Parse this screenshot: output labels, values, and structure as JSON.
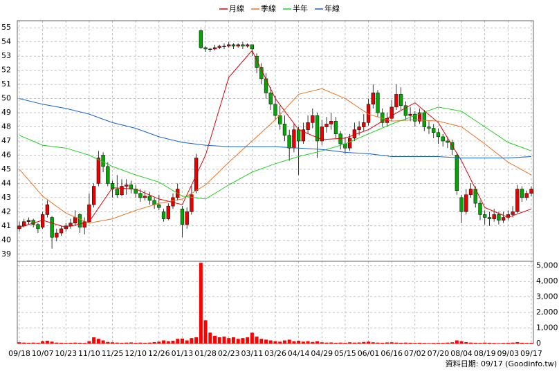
{
  "chart_data": {
    "type": "candlestick",
    "categories": [
      "09/18",
      null,
      null,
      null,
      null,
      "10/07",
      null,
      null,
      null,
      null,
      "10/23",
      null,
      null,
      null,
      null,
      "11/10",
      null,
      null,
      null,
      null,
      "11/25",
      null,
      null,
      null,
      null,
      "12/10",
      null,
      null,
      null,
      null,
      "12/26",
      null,
      null,
      null,
      null,
      "01/13",
      null,
      null,
      null,
      null,
      "01/28",
      null,
      null,
      null,
      null,
      "02/23",
      null,
      null,
      null,
      null,
      "03/11",
      null,
      null,
      null,
      null,
      "03/26",
      null,
      null,
      null,
      null,
      "04/14",
      null,
      null,
      null,
      null,
      "04/29",
      null,
      null,
      null,
      null,
      "05/15",
      null,
      null,
      null,
      null,
      "06/01",
      null,
      null,
      null,
      null,
      "06/16",
      null,
      null,
      null,
      null,
      "07/02",
      null,
      null,
      null,
      null,
      "07/20",
      null,
      null,
      null,
      null,
      "08/04",
      null,
      null,
      null,
      null,
      "08/19",
      null,
      null,
      null,
      null,
      "09/03",
      null,
      null,
      null,
      null,
      "09/17"
    ],
    "ohlc": [
      [
        40.8,
        41.3,
        40.6,
        41.0
      ],
      [
        41.0,
        41.5,
        40.9,
        41.3
      ],
      [
        41.3,
        41.6,
        41.1,
        41.4
      ],
      [
        41.4,
        41.5,
        40.9,
        41.1
      ],
      [
        41.1,
        41.2,
        40.5,
        40.8
      ],
      [
        40.9,
        42.0,
        40.8,
        41.8
      ],
      [
        41.8,
        42.8,
        41.6,
        42.5
      ],
      [
        41.6,
        41.7,
        39.4,
        40.2
      ],
      [
        40.2,
        40.8,
        39.9,
        40.5
      ],
      [
        40.5,
        41.0,
        40.3,
        40.8
      ],
      [
        40.8,
        41.2,
        40.6,
        41.0
      ],
      [
        41.0,
        41.5,
        40.8,
        41.2
      ],
      [
        41.2,
        42.1,
        41.0,
        41.6
      ],
      [
        41.8,
        41.9,
        40.5,
        40.9
      ],
      [
        40.9,
        41.6,
        40.4,
        41.3
      ],
      [
        41.3,
        43.3,
        41.2,
        42.5
      ],
      [
        42.5,
        44.0,
        42.3,
        43.8
      ],
      [
        44.0,
        46.3,
        43.8,
        45.8
      ],
      [
        46.0,
        46.2,
        44.8,
        45.2
      ],
      [
        45.2,
        45.5,
        43.8,
        44.0
      ],
      [
        44.0,
        44.2,
        43.0,
        43.6
      ],
      [
        43.6,
        44.6,
        43.0,
        43.2
      ],
      [
        43.2,
        44.3,
        43.1,
        43.8
      ],
      [
        43.8,
        44.3,
        43.2,
        43.9
      ],
      [
        43.9,
        44.2,
        43.3,
        43.6
      ],
      [
        43.6,
        43.9,
        43.0,
        43.3
      ],
      [
        43.3,
        43.6,
        42.7,
        43.0
      ],
      [
        43.0,
        43.5,
        42.8,
        43.1
      ],
      [
        43.1,
        43.4,
        42.5,
        42.8
      ],
      [
        42.8,
        43.0,
        42.2,
        42.5
      ],
      [
        42.5,
        43.2,
        42.1,
        42.3
      ],
      [
        42.0,
        42.2,
        41.3,
        41.5
      ],
      [
        41.5,
        42.6,
        41.4,
        42.4
      ],
      [
        42.4,
        43.3,
        42.2,
        43.0
      ],
      [
        43.0,
        44.0,
        42.8,
        43.6
      ],
      [
        42.2,
        42.4,
        40.2,
        41.1
      ],
      [
        41.1,
        42.3,
        40.8,
        42.0
      ],
      [
        42.0,
        43.8,
        41.8,
        43.2
      ],
      [
        43.5,
        46.1,
        43.3,
        45.8
      ],
      [
        54.8,
        54.9,
        53.5,
        53.6
      ],
      [
        53.6,
        53.7,
        53.3,
        53.5
      ],
      [
        53.5,
        53.6,
        53.3,
        53.5
      ],
      [
        53.5,
        53.8,
        53.4,
        53.6
      ],
      [
        53.6,
        53.8,
        53.5,
        53.7
      ],
      [
        53.7,
        53.9,
        53.5,
        53.7
      ],
      [
        53.7,
        54.0,
        53.6,
        53.8
      ],
      [
        53.8,
        53.9,
        53.5,
        53.7
      ],
      [
        53.7,
        53.9,
        53.6,
        53.8
      ],
      [
        53.8,
        54.0,
        53.5,
        53.7
      ],
      [
        53.7,
        53.9,
        53.6,
        53.8
      ],
      [
        53.8,
        53.8,
        53.0,
        53.5
      ],
      [
        53.0,
        53.2,
        51.8,
        52.2
      ],
      [
        52.2,
        52.5,
        51.0,
        51.4
      ],
      [
        51.4,
        51.8,
        50.0,
        50.4
      ],
      [
        50.4,
        50.8,
        49.2,
        49.6
      ],
      [
        49.6,
        50.2,
        48.5,
        48.8
      ],
      [
        48.8,
        49.5,
        47.8,
        48.2
      ],
      [
        48.2,
        48.8,
        47.0,
        47.4
      ],
      [
        47.4,
        47.8,
        45.6,
        46.5
      ],
      [
        46.5,
        48.2,
        46.2,
        47.8
      ],
      [
        47.8,
        48.0,
        44.6,
        47.0
      ],
      [
        47.0,
        48.3,
        46.8,
        47.8
      ],
      [
        47.8,
        48.8,
        47.5,
        48.3
      ],
      [
        48.3,
        49.3,
        47.9,
        48.8
      ],
      [
        48.8,
        49.0,
        45.8,
        47.0
      ],
      [
        47.0,
        48.5,
        46.7,
        48.0
      ],
      [
        48.0,
        48.7,
        47.6,
        48.2
      ],
      [
        48.2,
        49.0,
        47.8,
        48.4
      ],
      [
        48.4,
        48.7,
        47.2,
        47.5
      ],
      [
        47.5,
        47.7,
        46.4,
        46.8
      ],
      [
        46.8,
        47.3,
        46.1,
        46.5
      ],
      [
        46.5,
        47.5,
        46.3,
        47.2
      ],
      [
        47.2,
        48.3,
        47.0,
        47.8
      ],
      [
        47.8,
        48.4,
        47.4,
        48.0
      ],
      [
        48.0,
        48.9,
        47.7,
        48.3
      ],
      [
        48.3,
        50.0,
        48.1,
        49.6
      ],
      [
        49.6,
        51.0,
        49.3,
        50.4
      ],
      [
        50.4,
        50.6,
        48.7,
        49.0
      ],
      [
        49.0,
        49.3,
        48.0,
        48.3
      ],
      [
        48.3,
        49.0,
        48.0,
        48.6
      ],
      [
        48.6,
        49.9,
        48.4,
        49.4
      ],
      [
        49.4,
        51.0,
        49.2,
        50.3
      ],
      [
        50.3,
        50.8,
        49.2,
        49.5
      ],
      [
        49.5,
        49.8,
        48.5,
        48.8
      ],
      [
        48.8,
        49.4,
        48.4,
        48.9
      ],
      [
        48.9,
        49.1,
        48.0,
        48.4
      ],
      [
        48.4,
        49.3,
        48.2,
        49.0
      ],
      [
        49.0,
        49.2,
        47.7,
        48.0
      ],
      [
        48.0,
        48.4,
        47.5,
        47.9
      ],
      [
        47.9,
        48.2,
        47.2,
        47.6
      ],
      [
        47.6,
        47.9,
        46.8,
        47.3
      ],
      [
        47.3,
        47.5,
        46.6,
        47.0
      ],
      [
        47.0,
        47.3,
        46.5,
        46.9
      ],
      [
        46.9,
        47.1,
        46.0,
        46.4
      ],
      [
        46.0,
        46.2,
        43.2,
        43.5
      ],
      [
        43.0,
        43.2,
        41.2,
        42.0
      ],
      [
        42.0,
        43.6,
        41.8,
        43.2
      ],
      [
        43.2,
        44.0,
        43.0,
        43.6
      ],
      [
        43.6,
        43.8,
        42.3,
        42.6
      ],
      [
        42.6,
        42.8,
        41.4,
        41.8
      ],
      [
        41.8,
        42.1,
        41.1,
        41.6
      ],
      [
        41.6,
        42.0,
        41.0,
        41.5
      ],
      [
        41.5,
        42.2,
        41.3,
        41.8
      ],
      [
        41.8,
        42.0,
        41.1,
        41.4
      ],
      [
        41.4,
        42.0,
        41.2,
        41.6
      ],
      [
        41.6,
        42.1,
        41.4,
        41.8
      ],
      [
        41.8,
        42.4,
        41.6,
        42.0
      ],
      [
        42.0,
        43.9,
        41.9,
        43.6
      ],
      [
        43.6,
        43.8,
        42.7,
        43.0
      ],
      [
        43.0,
        43.5,
        42.8,
        43.3
      ],
      [
        43.3,
        43.8,
        43.1,
        43.6
      ]
    ],
    "up_color": "#e80000",
    "down_color": "#00a800",
    "ylim": [
      38.5,
      55.5
    ],
    "yticks": [
      39,
      40,
      41,
      42,
      43,
      44,
      45,
      46,
      47,
      48,
      49,
      50,
      51,
      52,
      53,
      54,
      55
    ],
    "grid": true,
    "series": [
      {
        "name": "月線",
        "color": "#e00000",
        "x": [
          0,
          5,
          10,
          15,
          20,
          25,
          30,
          35,
          40,
          45,
          50,
          55,
          60,
          65,
          70,
          75,
          80,
          85,
          90,
          95,
          100,
          105,
          110
        ],
        "values": [
          40.9,
          41.4,
          40.9,
          41.3,
          43.7,
          43.6,
          42.9,
          42.5,
          46,
          51.5,
          53.4,
          50,
          47.8,
          47.1,
          47.2,
          47.8,
          48.8,
          49.7,
          48.3,
          45.6,
          42.3,
          41.6,
          42.2
        ]
      },
      {
        "name": "季線",
        "color": "#f07020",
        "x": [
          0,
          5,
          10,
          15,
          20,
          25,
          30,
          35,
          40,
          45,
          50,
          55,
          60,
          65,
          70,
          75,
          80,
          85,
          90,
          95,
          100,
          105,
          110
        ],
        "values": [
          45.0,
          43.1,
          41.9,
          41.2,
          41.5,
          42.1,
          42.6,
          42.9,
          43.9,
          45.5,
          47,
          48.5,
          50.3,
          50.7,
          50,
          48.9,
          48.4,
          48.5,
          48.4,
          48,
          46.8,
          45.5,
          44.6
        ]
      },
      {
        "name": "半年",
        "color": "#20d020",
        "x": [
          0,
          5,
          10,
          15,
          20,
          25,
          30,
          35,
          40,
          45,
          50,
          55,
          60,
          65,
          70,
          75,
          80,
          85,
          90,
          95,
          100,
          105,
          110
        ],
        "values": [
          47.4,
          46.7,
          46.5,
          46,
          45.2,
          44.6,
          44.1,
          43.1,
          42.9,
          43.9,
          44.8,
          45.4,
          45.9,
          46.3,
          46.8,
          47.5,
          48.2,
          48.8,
          49.4,
          49.1,
          48,
          46.9,
          46.3
        ]
      },
      {
        "name": "年線",
        "color": "#1060d0",
        "x": [
          0,
          5,
          10,
          15,
          20,
          25,
          30,
          35,
          40,
          45,
          50,
          55,
          60,
          65,
          70,
          75,
          80,
          85,
          90,
          95,
          100,
          105,
          110
        ],
        "values": [
          50,
          49.6,
          49.3,
          48.9,
          48.3,
          47.9,
          47.3,
          46.9,
          46.7,
          46.6,
          46.6,
          46.6,
          46.5,
          46.4,
          46.2,
          46.1,
          45.9,
          45.9,
          45.9,
          45.8,
          45.8,
          45.8,
          45.9
        ]
      }
    ],
    "volume": {
      "color": "#ff0000",
      "ylim": [
        0,
        5300
      ],
      "yticks": [
        0,
        {
          "value": 1000,
          "label": "1,000"
        },
        {
          "value": 2000,
          "label": "2,000"
        },
        {
          "value": 3000,
          "label": "3,000"
        },
        {
          "value": 4000,
          "label": "4,000"
        },
        {
          "value": 5000,
          "label": "5,000"
        }
      ],
      "values": [
        80,
        60,
        50,
        60,
        50,
        150,
        180,
        120,
        60,
        50,
        40,
        50,
        60,
        50,
        40,
        150,
        400,
        300,
        200,
        100,
        80,
        60,
        50,
        60,
        70,
        50,
        60,
        50,
        60,
        90,
        120,
        200,
        150,
        180,
        300,
        320,
        200,
        350,
        400,
        5200,
        1500,
        700,
        500,
        400,
        450,
        350,
        400,
        300,
        350,
        400,
        700,
        450,
        300,
        250,
        200,
        150,
        120,
        200,
        250,
        150,
        180,
        120,
        150,
        100,
        150,
        80,
        60,
        70,
        50,
        60,
        50,
        80,
        60,
        70,
        100,
        120,
        80,
        60,
        50,
        70,
        80,
        60,
        50,
        60,
        50,
        40,
        50,
        40,
        30,
        40,
        50,
        40,
        60,
        80,
        200,
        150,
        90,
        60,
        50,
        40,
        60,
        50,
        40,
        30,
        40,
        50,
        60,
        90,
        50,
        40,
        50
      ]
    },
    "note": "資料日期: 09/17 (Goodinfo.tw)"
  }
}
